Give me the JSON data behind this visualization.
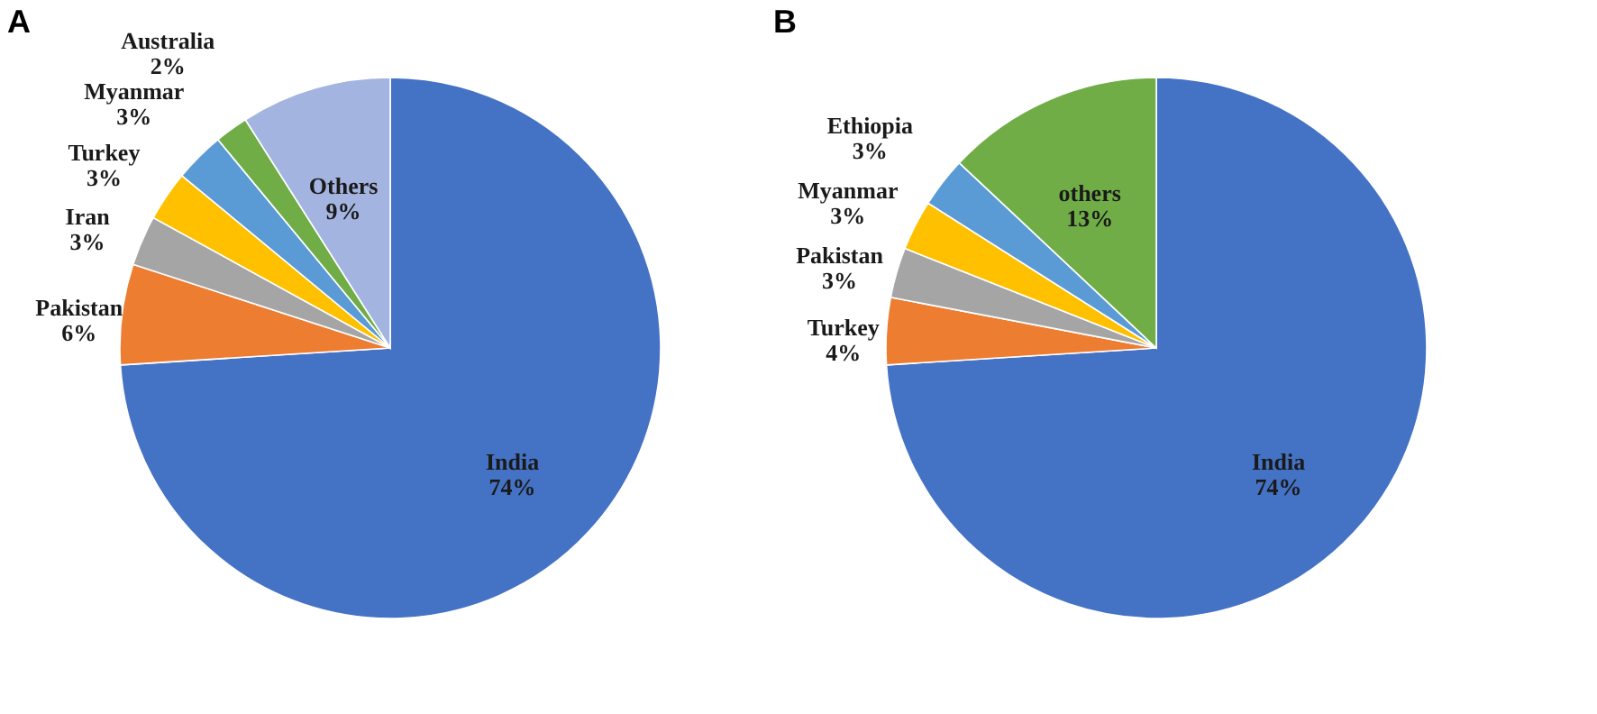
{
  "chart_data": [
    {
      "type": "pie",
      "title": "A",
      "categories": [
        "India",
        "Pakistan",
        "Iran",
        "Turkey",
        "Myanmar",
        "Australia",
        "Others"
      ],
      "values": [
        74,
        6,
        3,
        3,
        3,
        2,
        9
      ],
      "colors": [
        "#4472c4",
        "#ed7d31",
        "#a5a5a5",
        "#ffc000",
        "#5b9bd5",
        "#70ad47",
        "#a4b4e0"
      ],
      "value_labels": [
        "74%",
        "6%",
        "3%",
        "3%",
        "3%",
        "2%",
        "9%"
      ]
    },
    {
      "type": "pie",
      "title": "B",
      "categories": [
        "India",
        "Turkey",
        "Pakistan",
        "Myanmar",
        "Ethiopia",
        "others"
      ],
      "values": [
        74,
        4,
        3,
        3,
        3,
        13
      ],
      "colors": [
        "#4472c4",
        "#ed7d31",
        "#a5a5a5",
        "#ffc000",
        "#5b9bd5",
        "#70ad47"
      ],
      "value_labels": [
        "74%",
        "4%",
        "3%",
        "3%",
        "3%",
        "13%"
      ]
    }
  ]
}
